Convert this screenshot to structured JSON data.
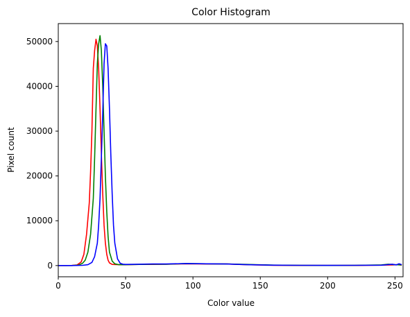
{
  "chart_data": {
    "type": "line",
    "title": "Color Histogram",
    "xlabel": "Color value",
    "ylabel": "Pixel count",
    "xlim": [
      0,
      256
    ],
    "ylim": [
      -2500,
      54000
    ],
    "x_ticks": [
      0,
      50,
      100,
      150,
      200,
      250
    ],
    "y_ticks": [
      0,
      10000,
      20000,
      30000,
      40000,
      50000
    ],
    "grid": false,
    "series": [
      {
        "color": "#ff0000",
        "points": [
          [
            0,
            0
          ],
          [
            5,
            0
          ],
          [
            10,
            20
          ],
          [
            14,
            150
          ],
          [
            17,
            800
          ],
          [
            19,
            2500
          ],
          [
            21,
            7000
          ],
          [
            23,
            14000
          ],
          [
            24,
            21000
          ],
          [
            25,
            30000
          ],
          [
            26,
            44000
          ],
          [
            27,
            48000
          ],
          [
            28,
            50500
          ],
          [
            29,
            49000
          ],
          [
            30,
            44000
          ],
          [
            31,
            35000
          ],
          [
            32,
            25000
          ],
          [
            33,
            16000
          ],
          [
            34,
            9000
          ],
          [
            35,
            5000
          ],
          [
            36,
            2500
          ],
          [
            37,
            1200
          ],
          [
            38,
            600
          ],
          [
            40,
            250
          ],
          [
            45,
            200
          ],
          [
            50,
            200
          ],
          [
            60,
            250
          ],
          [
            70,
            250
          ],
          [
            80,
            300
          ],
          [
            95,
            400
          ],
          [
            110,
            350
          ],
          [
            125,
            350
          ],
          [
            140,
            200
          ],
          [
            160,
            50
          ],
          [
            180,
            30
          ],
          [
            200,
            20
          ],
          [
            220,
            30
          ],
          [
            240,
            100
          ],
          [
            248,
            150
          ],
          [
            252,
            200
          ],
          [
            255,
            100
          ]
        ]
      },
      {
        "color": "#008000",
        "points": [
          [
            0,
            0
          ],
          [
            5,
            0
          ],
          [
            10,
            10
          ],
          [
            15,
            100
          ],
          [
            18,
            500
          ],
          [
            20,
            1200
          ],
          [
            22,
            3000
          ],
          [
            24,
            7000
          ],
          [
            26,
            15000
          ],
          [
            27,
            24000
          ],
          [
            28,
            35000
          ],
          [
            29,
            45000
          ],
          [
            30,
            49500
          ],
          [
            31,
            51300
          ],
          [
            32,
            48000
          ],
          [
            33,
            40000
          ],
          [
            34,
            30000
          ],
          [
            35,
            20000
          ],
          [
            36,
            12000
          ],
          [
            37,
            6500
          ],
          [
            38,
            3000
          ],
          [
            40,
            1000
          ],
          [
            42,
            400
          ],
          [
            45,
            200
          ],
          [
            50,
            200
          ],
          [
            60,
            250
          ],
          [
            70,
            300
          ],
          [
            80,
            300
          ],
          [
            95,
            450
          ],
          [
            110,
            400
          ],
          [
            125,
            350
          ],
          [
            140,
            250
          ],
          [
            160,
            100
          ],
          [
            180,
            50
          ],
          [
            200,
            30
          ],
          [
            220,
            50
          ],
          [
            240,
            150
          ],
          [
            245,
            300
          ],
          [
            250,
            200
          ],
          [
            255,
            150
          ]
        ]
      },
      {
        "color": "#0000ff",
        "points": [
          [
            0,
            0
          ],
          [
            5,
            0
          ],
          [
            10,
            0
          ],
          [
            18,
            50
          ],
          [
            22,
            200
          ],
          [
            25,
            700
          ],
          [
            27,
            2000
          ],
          [
            29,
            5000
          ],
          [
            30,
            9000
          ],
          [
            31,
            15000
          ],
          [
            32,
            24000
          ],
          [
            33,
            34000
          ],
          [
            34,
            45000
          ],
          [
            35,
            49500
          ],
          [
            36,
            49000
          ],
          [
            37,
            44000
          ],
          [
            38,
            35000
          ],
          [
            39,
            25000
          ],
          [
            40,
            16000
          ],
          [
            41,
            9000
          ],
          [
            42,
            5000
          ],
          [
            44,
            1500
          ],
          [
            46,
            500
          ],
          [
            48,
            300
          ],
          [
            50,
            250
          ],
          [
            60,
            300
          ],
          [
            70,
            350
          ],
          [
            80,
            350
          ],
          [
            95,
            450
          ],
          [
            110,
            400
          ],
          [
            125,
            350
          ],
          [
            140,
            200
          ],
          [
            160,
            80
          ],
          [
            180,
            50
          ],
          [
            200,
            40
          ],
          [
            220,
            50
          ],
          [
            240,
            80
          ],
          [
            248,
            300
          ],
          [
            251,
            150
          ],
          [
            253,
            400
          ],
          [
            255,
            200
          ]
        ]
      }
    ]
  }
}
